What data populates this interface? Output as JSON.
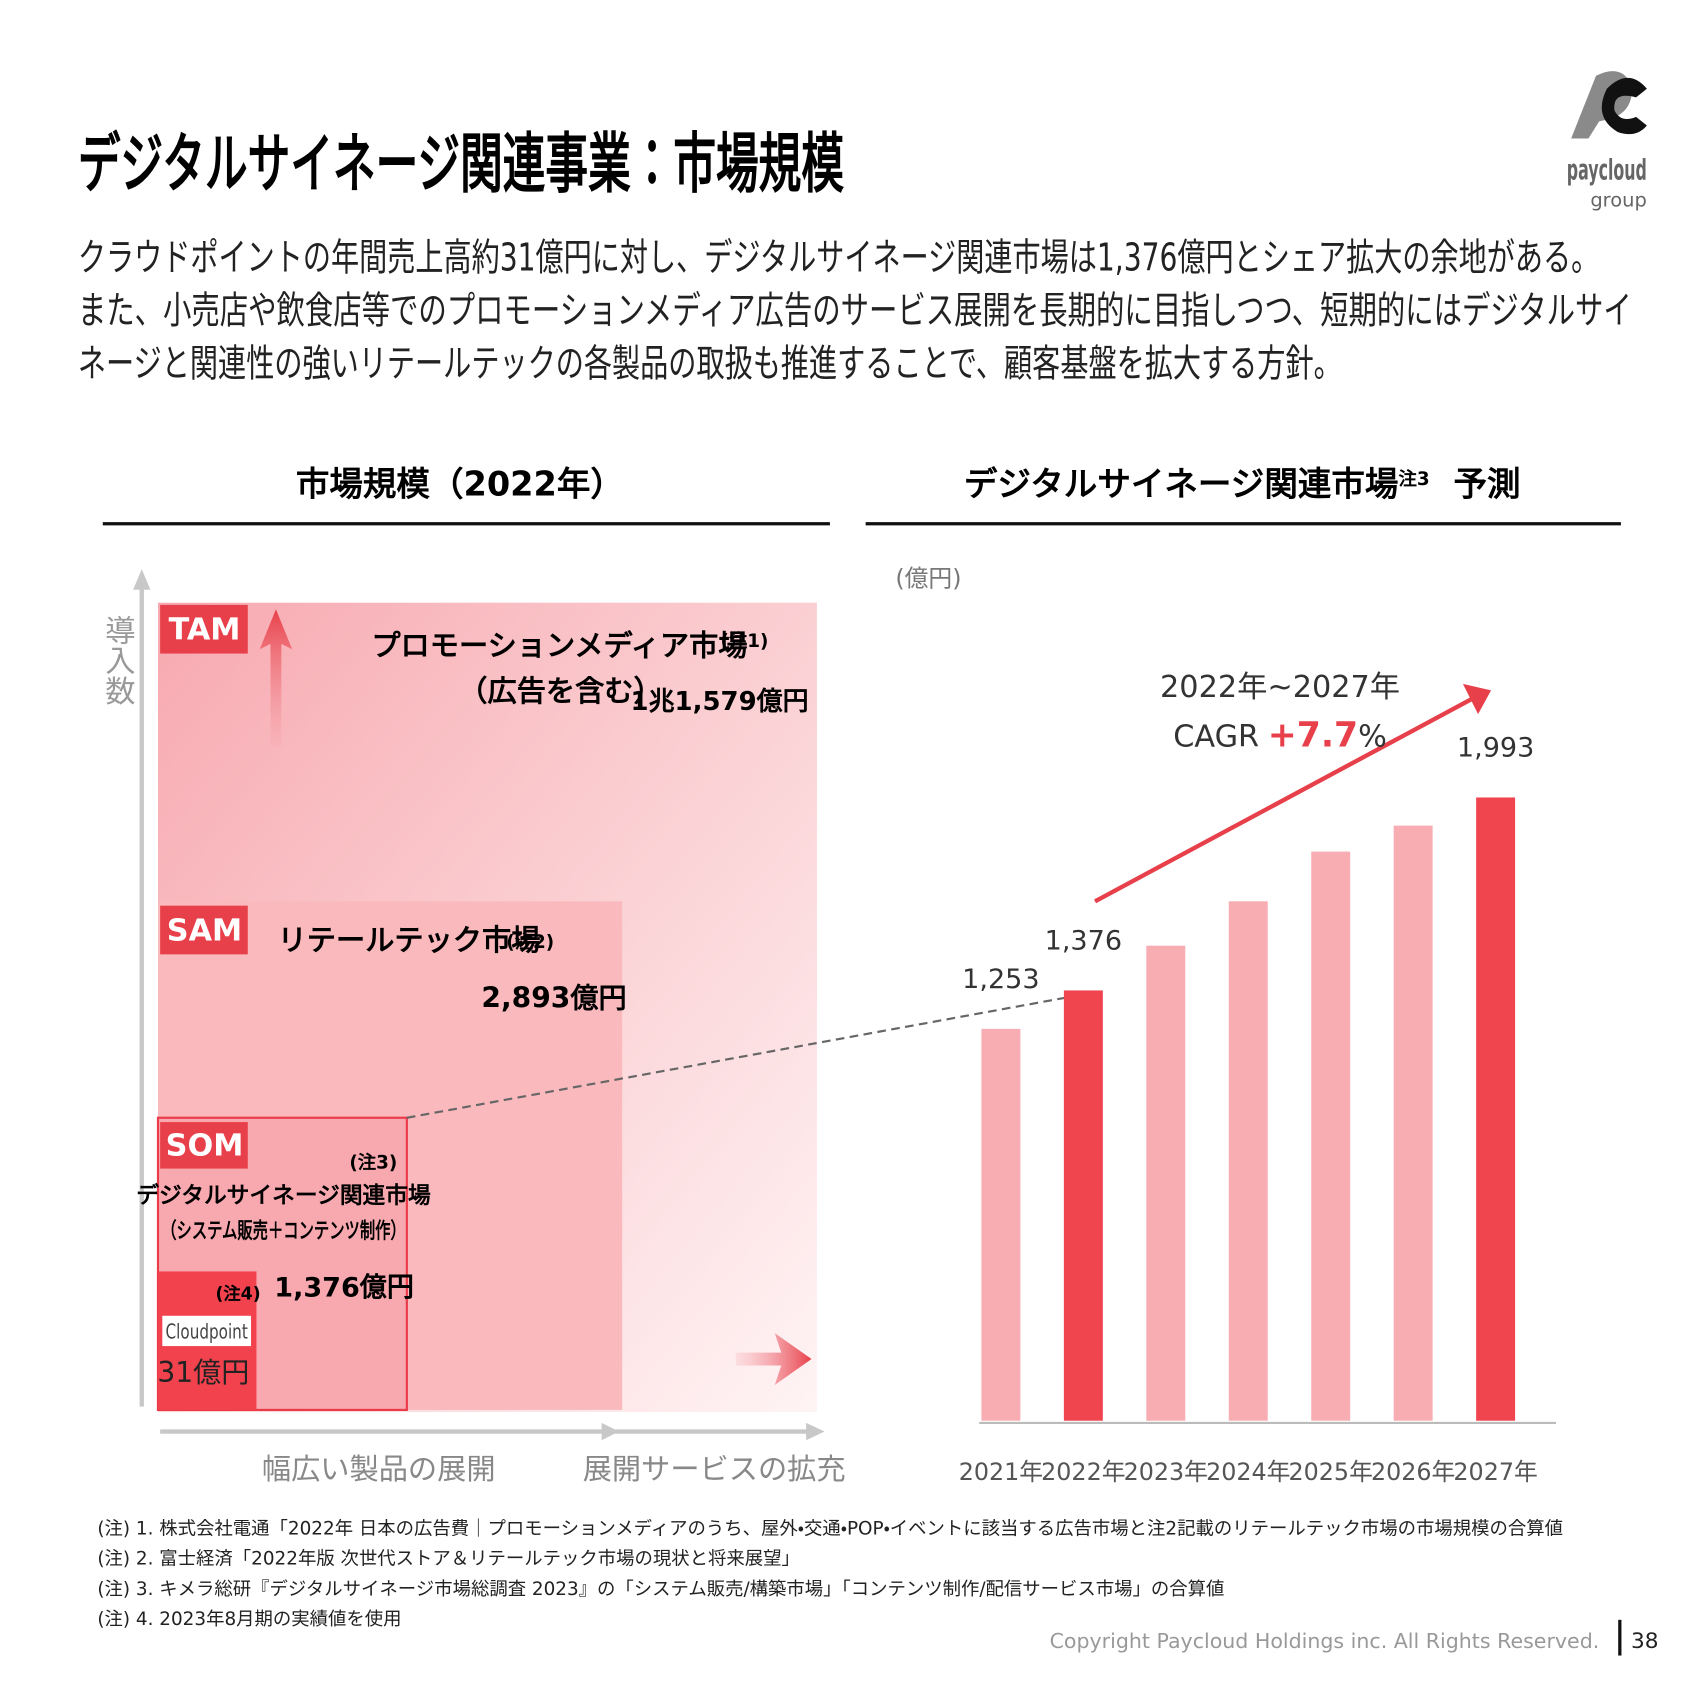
{
  "header": {
    "title": "デジタルサイネージ関連事業：市場規模",
    "lines": [
      "クラウドポイントの年間売上高約31億円に対し、デジタルサイネージ関連市場は1,376億円とシェア拡大の余地がある。",
      "また、小売店や飲食店等でのプロモーションメディア広告のサービス展開を長期的に目指しつつ、短期的にはデジタルサイ",
      "ネージと関連性の強いリテールテックの各製品の取扱も推進することで、顧客基盤を拡大する方針。"
    ]
  },
  "logo": {
    "name": "paycloud",
    "sub": "group"
  },
  "market_size": {
    "title": "市場規模（2022年）",
    "y_label": "導入数",
    "x_labels": [
      "幅広い製品の展開",
      "展開サービスの拡充"
    ],
    "tam": {
      "tag": "TAM",
      "name": "プロモーションメディア市場",
      "note": "(注1)",
      "sub": "（広告を含む）",
      "value": "1兆1,579億円"
    },
    "sam": {
      "tag": "SAM",
      "name": "リテールテック市場",
      "note": "(注2)",
      "value": "2,893億円"
    },
    "som": {
      "tag": "SOM",
      "note": "(注3)",
      "name": "デジタルサイネージ関連市場",
      "sub": "（システム販売＋コンテンツ制作）",
      "value": "1,376億円"
    },
    "cloudpoint": {
      "note": "(注4)",
      "logo": "Cloudpoint",
      "value": "31億円"
    }
  },
  "chart_data": {
    "type": "bar",
    "title": "デジタルサイネージ関連市場",
    "title_note": "注3",
    "title_suffix": "予測",
    "y_label": "(億円)",
    "categories": [
      "2021年",
      "2022年",
      "2023年",
      "2024年",
      "2025年",
      "2026年",
      "2027年"
    ],
    "values": [
      1253,
      1376,
      1519,
      1661,
      1820,
      1903,
      1993
    ],
    "value_labels": [
      "1,253",
      "1,376",
      null,
      null,
      null,
      null,
      "1,993"
    ],
    "colors": [
      "#f8adb3",
      "#f0444f",
      "#f8adb3",
      "#f8adb3",
      "#f8adb3",
      "#f8adb3",
      "#f0444f"
    ],
    "cagr": {
      "period": "2022年~2027年",
      "label": "CAGR",
      "value": "+7.7",
      "unit": "%"
    }
  },
  "footnotes": [
    "(注) 1. 株式会社電通「2022年 日本の広告費｜プロモーションメディアのうち、屋外・交通・POP・イベントに該当する広告市場と注2記載のリテールテック市場の市場規模の合算値",
    "(注) 2. 富士経済「2022年版 次世代ストア＆リテールテック市場の現状と将来展望」",
    "(注) 3. キメラ総研『デジタルサイネージ市場総調査 2023』の「システム販売/構築市場」「コンテンツ制作/配信サービス市場」の合算値",
    "(注) 4. 2023年8月期の実績値を使用"
  ],
  "footer": {
    "copyright": "Copyright Paycloud Holdings inc. All Rights Reserved.",
    "page": "38"
  }
}
